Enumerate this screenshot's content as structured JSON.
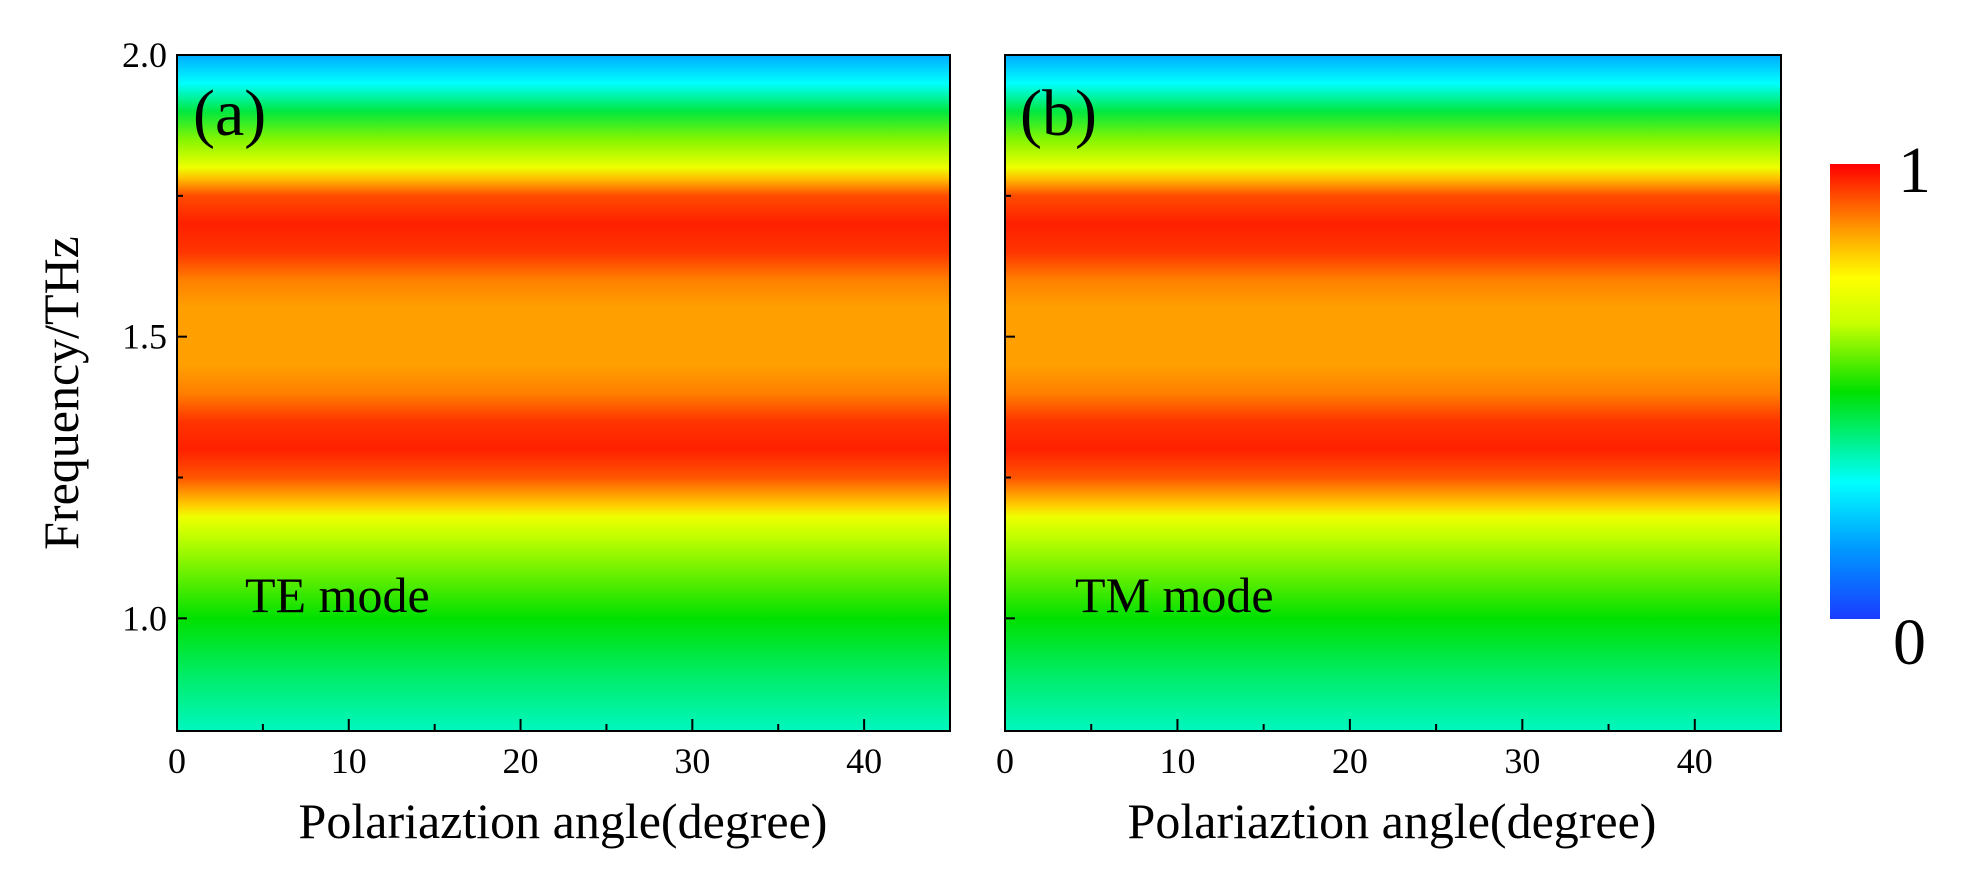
{
  "chart_data": [
    {
      "type": "heatmap",
      "panel_label": "(a)",
      "annotation": "TE mode",
      "xlabel": "Polariaztion angle(degree)",
      "ylabel": "Frequency/THz",
      "xlim": [
        0,
        45
      ],
      "ylim": [
        0.8,
        2.0
      ],
      "x_ticks": [
        0,
        10,
        20,
        30,
        40
      ],
      "x_tick_labels": [
        "0",
        "10",
        "20",
        "30",
        "40"
      ],
      "x_minor_ticks": [
        5,
        15,
        25,
        35
      ],
      "y_ticks": [
        1.0,
        1.5,
        2.0
      ],
      "y_tick_labels": [
        "1.0",
        "1.5",
        "2.0"
      ],
      "y_minor_ticks": [
        1.25,
        1.75
      ],
      "profile": {
        "frequency": [
          0.8,
          0.9,
          1.0,
          1.05,
          1.1,
          1.15,
          1.18,
          1.2,
          1.25,
          1.3,
          1.35,
          1.4,
          1.45,
          1.5,
          1.55,
          1.6,
          1.65,
          1.7,
          1.75,
          1.78,
          1.8,
          1.85,
          1.9,
          1.95,
          2.0
        ],
        "value": [
          0.35,
          0.42,
          0.5,
          0.55,
          0.6,
          0.65,
          0.72,
          0.8,
          0.92,
          0.97,
          0.95,
          0.88,
          0.85,
          0.85,
          0.85,
          0.88,
          0.95,
          0.97,
          0.93,
          0.82,
          0.72,
          0.6,
          0.45,
          0.3,
          0.18
        ]
      }
    },
    {
      "type": "heatmap",
      "panel_label": "(b)",
      "annotation": "TM mode",
      "xlabel": "Polariaztion angle(degree)",
      "ylabel": "",
      "xlim": [
        0,
        45
      ],
      "ylim": [
        0.8,
        2.0
      ],
      "x_ticks": [
        0,
        10,
        20,
        30,
        40
      ],
      "x_tick_labels": [
        "0",
        "10",
        "20",
        "30",
        "40"
      ],
      "x_minor_ticks": [
        5,
        15,
        25,
        35
      ],
      "y_ticks": [
        1.0,
        1.5,
        2.0
      ],
      "y_tick_labels": [
        "",
        "",
        ""
      ],
      "y_minor_ticks": [
        1.25,
        1.75
      ],
      "profile": {
        "frequency": [
          0.8,
          0.9,
          1.0,
          1.05,
          1.1,
          1.15,
          1.18,
          1.2,
          1.25,
          1.3,
          1.35,
          1.4,
          1.45,
          1.5,
          1.55,
          1.6,
          1.65,
          1.7,
          1.75,
          1.78,
          1.8,
          1.85,
          1.9,
          1.95,
          2.0
        ],
        "value": [
          0.35,
          0.42,
          0.5,
          0.55,
          0.6,
          0.65,
          0.72,
          0.8,
          0.92,
          0.97,
          0.95,
          0.88,
          0.85,
          0.85,
          0.85,
          0.88,
          0.95,
          0.97,
          0.93,
          0.82,
          0.72,
          0.6,
          0.45,
          0.3,
          0.18
        ]
      }
    }
  ],
  "colorbar": {
    "min_label": "0",
    "max_label": "1",
    "range": [
      0,
      1
    ],
    "stops": [
      {
        "value": 0.0,
        "color": "#1a3cff"
      },
      {
        "value": 0.15,
        "color": "#0096ff"
      },
      {
        "value": 0.3,
        "color": "#00ffff"
      },
      {
        "value": 0.5,
        "color": "#00e000"
      },
      {
        "value": 0.65,
        "color": "#c8ff00"
      },
      {
        "value": 0.75,
        "color": "#ffff00"
      },
      {
        "value": 0.85,
        "color": "#ffa000"
      },
      {
        "value": 1.0,
        "color": "#ff0000"
      }
    ]
  }
}
